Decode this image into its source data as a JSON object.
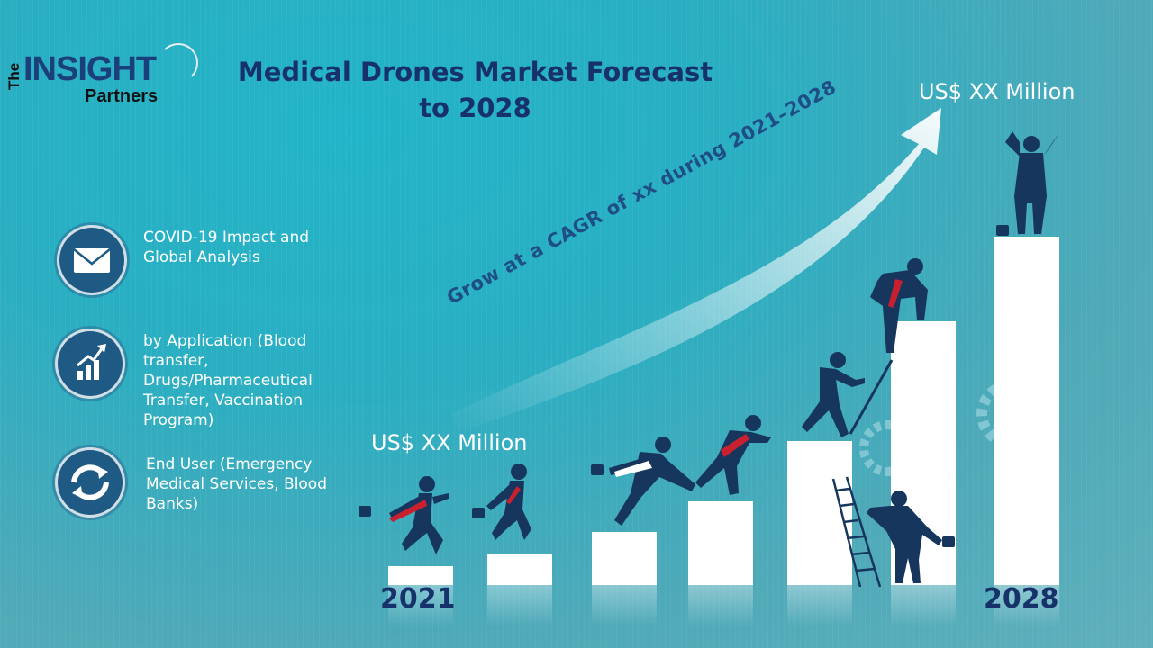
{
  "brand": {
    "the": "The",
    "insight": "INSIGHT",
    "partners": "Partners"
  },
  "title": "Medical Drones Market Forecast to 2028",
  "features": [
    {
      "icon": "envelope-icon",
      "text": "COVID-19 Impact and Global Analysis"
    },
    {
      "icon": "growth-chart-icon",
      "text": "by Application (Blood transfer, Drugs/Pharmaceutical Transfer, Vaccination Program)"
    },
    {
      "icon": "cycle-arrows-icon",
      "text": "End User (Emergency Medical Services, Blood Banks)"
    }
  ],
  "forecast": {
    "start_value": "US$ XX Million",
    "end_value": "US$ XX Million",
    "cagr_text": "Grow at a CAGR of xx during 2021–2028",
    "start_year": "2021",
    "end_year": "2028"
  },
  "colors": {
    "title": "#17326b",
    "accent_red": "#c8202f",
    "figure": "#17365e"
  }
}
